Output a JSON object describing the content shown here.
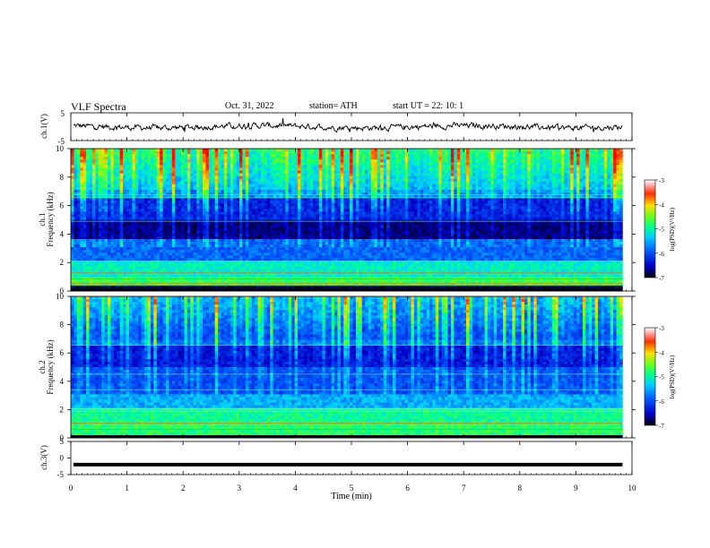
{
  "header": {
    "title": "VLF  Spectra",
    "date": "Oct. 31, 2022",
    "station": "station= ATH",
    "start": "start  UT  =    22: 10: 1"
  },
  "chart_data": [
    {
      "id": "ch1-waveform",
      "type": "line",
      "ylabel": "ch.1(V)",
      "ylim": [
        -5,
        5
      ],
      "yticks": [
        "5",
        "-5"
      ],
      "xlim": [
        0,
        10
      ],
      "note_visible_only_as_trace": "noisy waveform near 0 V with spikes"
    },
    {
      "id": "ch1-spectrogram",
      "type": "heatmap",
      "ylabel_line1": "ch.1",
      "ylabel_line2": "Frequency  (kHz)",
      "ylim": [
        0,
        10
      ],
      "yticks": [
        "0",
        "2",
        "4",
        "6",
        "8",
        "10"
      ],
      "xlim": [
        0,
        10
      ],
      "colorbar_label": "log(PSD)(V²/Hz)",
      "colorbar_ticks": [
        "-3",
        "-4",
        "-5",
        "-6",
        "-7"
      ],
      "colorbar_range": [
        -7,
        -3
      ]
    },
    {
      "id": "ch2-spectrogram",
      "type": "heatmap",
      "ylabel_line1": "ch.2",
      "ylabel_line2": "Frequency  (kHz)",
      "ylim": [
        0,
        10
      ],
      "yticks": [
        "0",
        "2",
        "4",
        "6",
        "8",
        "10"
      ],
      "xlim": [
        0,
        10
      ],
      "colorbar_label": "log(PSD)(V²/Hz)",
      "colorbar_ticks": [
        "-3",
        "-4",
        "-5",
        "-6",
        "-7"
      ],
      "colorbar_range": [
        -7,
        -3
      ]
    },
    {
      "id": "ch3-waveform",
      "type": "line",
      "ylabel": "ch.3(V)",
      "ylim": [
        -5,
        5
      ],
      "yticks": [
        "5",
        "0",
        "-5"
      ],
      "xlim": [
        0,
        10
      ],
      "y_constant": -2
    }
  ],
  "xaxis": {
    "label": "Time  (min)",
    "ticks": [
      "0",
      "1",
      "2",
      "3",
      "4",
      "5",
      "6",
      "7",
      "8",
      "9",
      "10"
    ],
    "xlim": [
      0,
      10
    ],
    "data_end": 9.83
  },
  "colors": {
    "trace": "#000000",
    "colormap": [
      "#00003a",
      "#0000c8",
      "#0050ff",
      "#00b4ff",
      "#00ffc0",
      "#40ff40",
      "#c8ff00",
      "#ffc800",
      "#ff3000",
      "#ff0000"
    ]
  }
}
